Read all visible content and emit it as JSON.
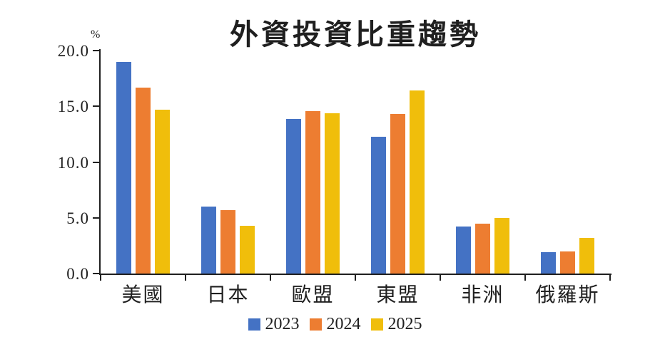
{
  "chart_data": {
    "type": "bar",
    "title": "外資投資比重趨勢",
    "unit_label": "%",
    "categories": [
      "美國",
      "日本",
      "歐盟",
      "東盟",
      "非洲",
      "俄羅斯"
    ],
    "series": [
      {
        "name": "2023",
        "color": "#4472C4",
        "values": [
          19.0,
          6.0,
          13.9,
          12.3,
          4.2,
          1.9
        ]
      },
      {
        "name": "2024",
        "color": "#ED7D31",
        "values": [
          16.7,
          5.7,
          14.6,
          14.3,
          4.5,
          2.0
        ]
      },
      {
        "name": "2025",
        "color": "#F0BE0B",
        "values": [
          14.7,
          4.3,
          14.4,
          16.4,
          5.0,
          3.2
        ]
      }
    ],
    "ylim": [
      0,
      20
    ],
    "yticks": [
      {
        "value": 0,
        "label": "0.0"
      },
      {
        "value": 5,
        "label": "5.0"
      },
      {
        "value": 10,
        "label": "10.0"
      },
      {
        "value": 15,
        "label": "15.0"
      },
      {
        "value": 20,
        "label": "20.0"
      }
    ],
    "grid": false,
    "legend_position": "bottom",
    "axis_color": "#1f1f1f",
    "background_color": "#ffffff"
  }
}
